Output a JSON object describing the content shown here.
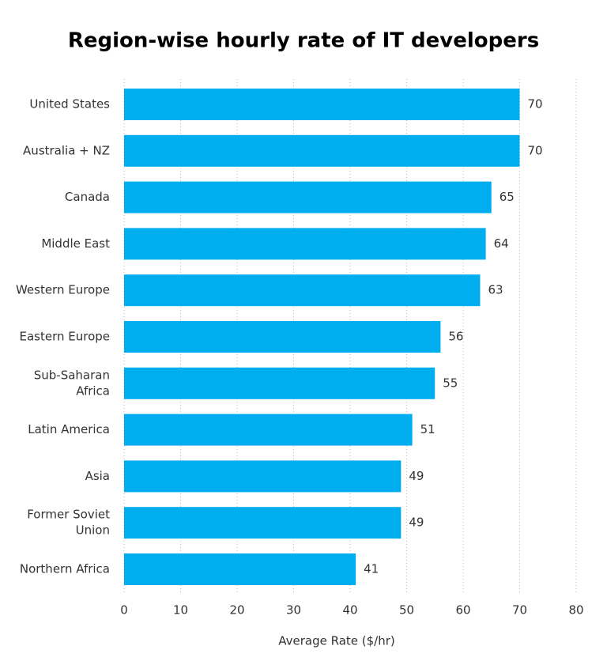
{
  "chart_data": {
    "type": "bar",
    "orientation": "horizontal",
    "title": "Region-wise hourly rate of IT developers",
    "x_label": "Average Rate ($/hr)",
    "categories": [
      "United States",
      "Australia + NZ",
      "Canada",
      "Middle East",
      "Western Europe",
      "Eastern Europe",
      [
        "Sub-Saharan",
        "Africa"
      ],
      "Latin America",
      "Asia",
      [
        "Former Soviet",
        "Union"
      ],
      "Northern Africa"
    ],
    "values": [
      70,
      70,
      65,
      64,
      63,
      56,
      55,
      51,
      49,
      49,
      41
    ],
    "color": "#00aeef",
    "xlim": [
      0,
      80
    ],
    "xticks": [
      0,
      10,
      20,
      30,
      40,
      50,
      60,
      70,
      80
    ],
    "grid": true
  }
}
